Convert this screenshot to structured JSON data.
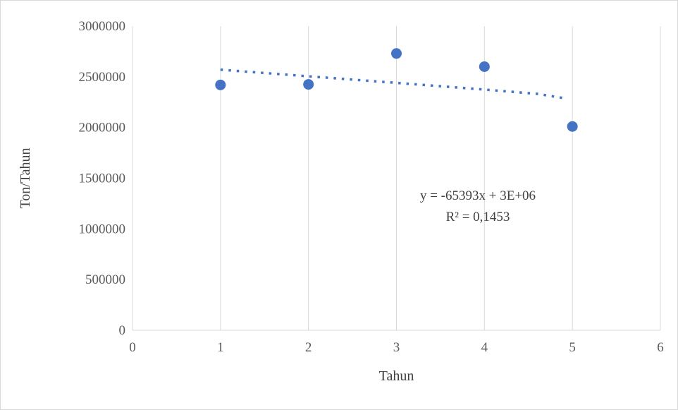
{
  "chart_data": {
    "type": "scatter",
    "x": [
      1,
      2,
      3,
      4,
      5
    ],
    "y": [
      2420000,
      2425000,
      2730000,
      2600000,
      2010000
    ],
    "xlabel": "Tahun",
    "ylabel": "Ton/Tahun",
    "xlim": [
      0,
      6
    ],
    "ylim": [
      0,
      3000000
    ],
    "x_ticks": [
      "0",
      "1",
      "2",
      "3",
      "4",
      "5",
      "6"
    ],
    "y_ticks": [
      "0",
      "500000",
      "1000000",
      "1500000",
      "2000000",
      "2500000",
      "3000000"
    ],
    "grid": "vertical",
    "marker_color": "#4472c4",
    "trendline": {
      "style": "dotted",
      "color": "#4472c4",
      "points": [
        [
          1,
          2570000
        ],
        [
          2,
          2505000
        ],
        [
          3,
          2440000
        ],
        [
          4,
          2374000
        ],
        [
          4.6,
          2332000
        ],
        [
          4.9,
          2290000
        ]
      ],
      "equation": "y = -65393x + 3E+06",
      "r_squared": "R² = 0,1453"
    }
  }
}
